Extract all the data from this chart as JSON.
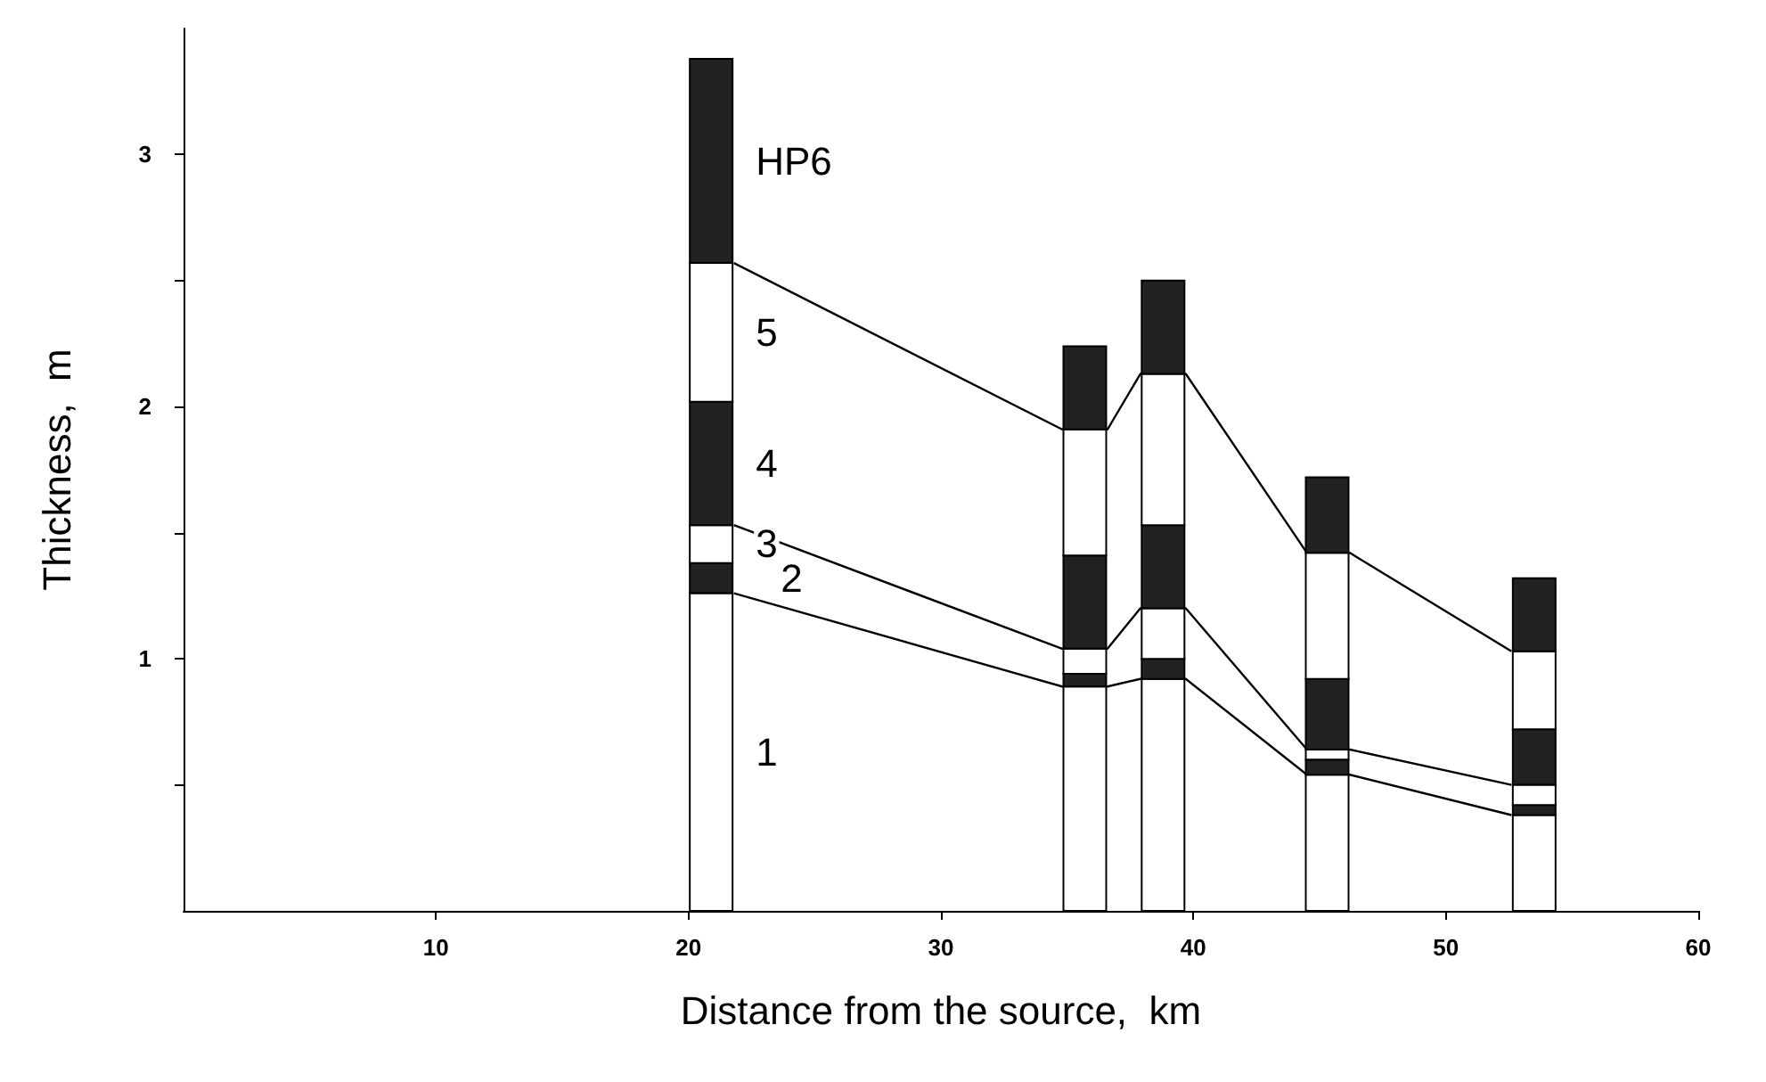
{
  "chart_data": {
    "type": "bar",
    "stacked": true,
    "xlabel": "Distance from the source,  km",
    "ylabel": "Thickness,  m",
    "x": [
      20.9,
      35.7,
      38.8,
      45.3,
      53.5
    ],
    "series": [
      {
        "color": "#ffffff",
        "values": [
          1.26,
          0.89,
          0.92,
          0.54,
          0.38
        ]
      },
      {
        "color": "#222222",
        "values": [
          0.12,
          0.05,
          0.08,
          0.06,
          0.04
        ]
      },
      {
        "color": "#ffffff",
        "values": [
          0.15,
          0.1,
          0.2,
          0.04,
          0.08
        ]
      },
      {
        "color": "#222222",
        "values": [
          0.49,
          0.37,
          0.33,
          0.28,
          0.22
        ]
      },
      {
        "color": "#ffffff",
        "values": [
          0.55,
          0.5,
          0.6,
          0.5,
          0.31
        ]
      },
      {
        "color": "#222222",
        "values": [
          0.81,
          0.33,
          0.37,
          0.3,
          0.29
        ]
      },
      {
        "type": "line",
        "color": "#000000",
        "x": [
          21.8,
          34.8,
          36.6,
          37.9,
          39.7,
          44.5,
          46.2,
          52.6
        ],
        "values": [
          1.26,
          0.89,
          0.89,
          0.92,
          0.92,
          0.54,
          0.54,
          0.38
        ]
      },
      {
        "type": "line",
        "color": "#000000",
        "x": [
          21.8,
          34.8,
          36.6,
          37.9,
          39.7,
          44.5,
          46.2,
          52.6
        ],
        "values": [
          1.53,
          1.04,
          1.04,
          1.2,
          1.2,
          0.64,
          0.64,
          0.5
        ]
      },
      {
        "type": "line",
        "color": "#000000",
        "x": [
          21.8,
          34.8,
          36.6,
          37.9,
          39.7,
          44.5,
          46.2,
          52.6
        ],
        "values": [
          2.57,
          1.91,
          1.91,
          2.13,
          2.13,
          1.42,
          1.42,
          1.03
        ]
      }
    ],
    "annotations": [
      "HP6",
      "5",
      "4",
      "3",
      "2",
      "1"
    ],
    "xlim": [
      0,
      60
    ],
    "xticks": [
      10,
      20,
      30,
      40,
      50,
      60
    ],
    "ylim": [
      0,
      3.5
    ],
    "yticks": [
      {
        "value": 0.5,
        "label": null
      },
      1,
      {
        "value": 1.5,
        "label": null
      },
      2,
      {
        "value": 2.5,
        "label": null
      },
      3
    ],
    "marker": "none",
    "line_style": "solid",
    "grid": false
  }
}
